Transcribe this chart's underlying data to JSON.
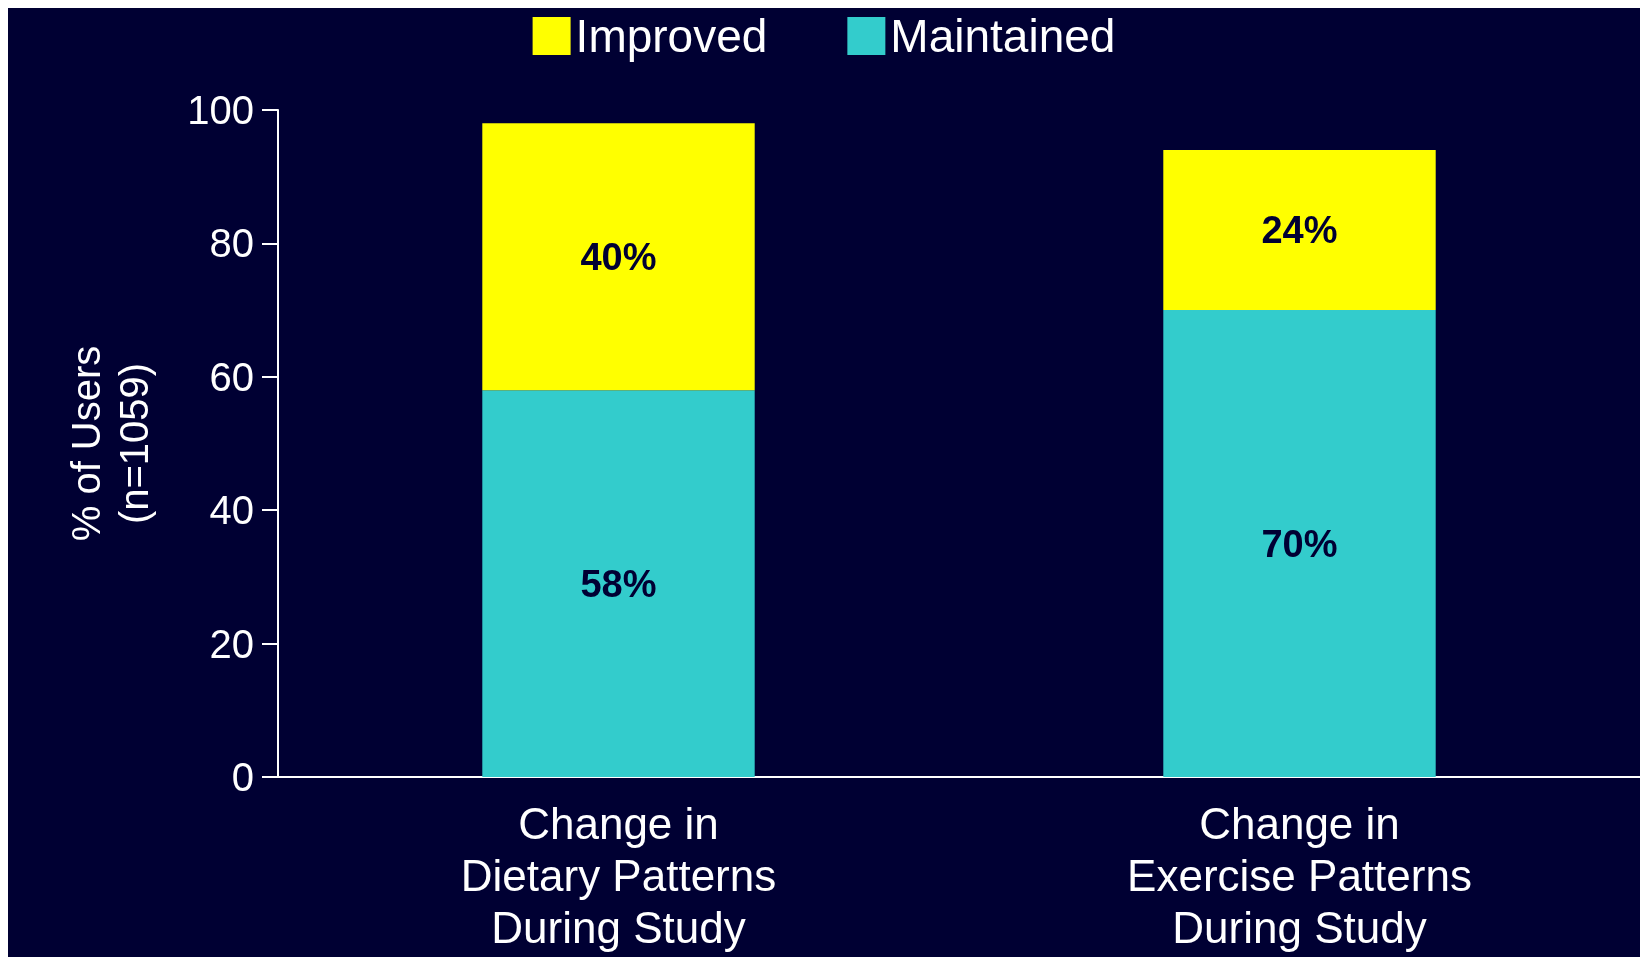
{
  "chart_data": {
    "type": "bar",
    "stacked": true,
    "ylabel": "% of Users\n(n=1059)",
    "categories": [
      "Change in\nDietary Patterns\nDuring Study",
      "Change in\nExercise Patterns\nDuring Study"
    ],
    "series": [
      {
        "name": "Maintained",
        "color": "#33cccc",
        "values": [
          58,
          70
        ],
        "value_labels": [
          "58%",
          "70%"
        ]
      },
      {
        "name": "Improved",
        "color": "#ffff00",
        "values": [
          40,
          24
        ],
        "value_labels": [
          "40%",
          "24%"
        ]
      }
    ],
    "ylim": [
      0,
      100
    ],
    "yticks": [
      0,
      20,
      40,
      60,
      80,
      100
    ],
    "grid": false,
    "legend": "top"
  }
}
